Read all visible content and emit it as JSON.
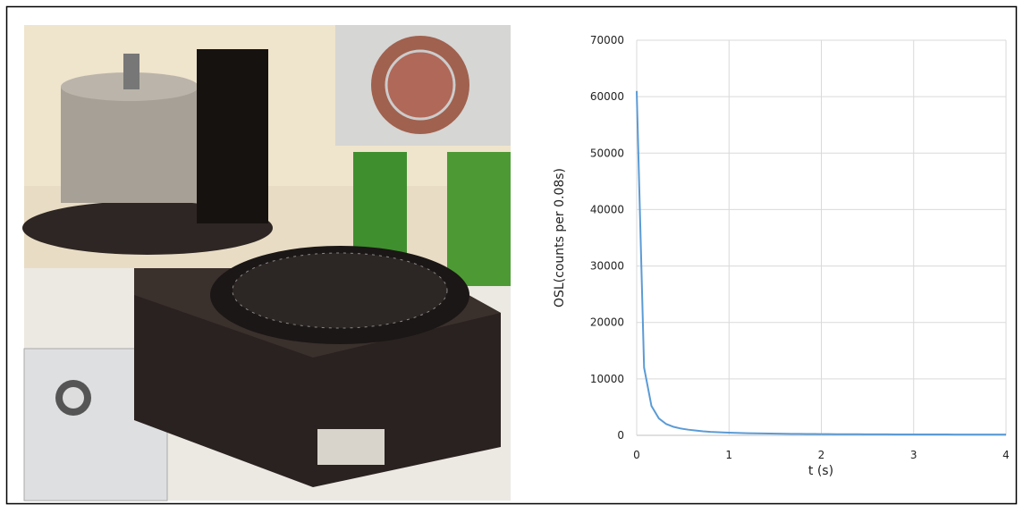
{
  "chart_data": {
    "type": "line",
    "x_label": "t (s)",
    "y_label": "OSL(counts per 0.08s)",
    "x": [
      0,
      0.08,
      0.16,
      0.24,
      0.32,
      0.4,
      0.48,
      0.56,
      0.64,
      0.72,
      0.8,
      0.88,
      0.96,
      1.04,
      1.12,
      1.2,
      1.28,
      1.36,
      1.44,
      1.52,
      1.6,
      1.68,
      1.76,
      1.84,
      1.92,
      2,
      2.08,
      2.16,
      2.24,
      2.32,
      2.4,
      2.48,
      2.56,
      2.64,
      2.72,
      2.8,
      2.88,
      2.96,
      3.04,
      3.12,
      3.2,
      3.28,
      3.36,
      3.44,
      3.52,
      3.6,
      3.68,
      3.76,
      3.84,
      3.92,
      4
    ],
    "series": [
      {
        "color": "#5b9bd5",
        "values": [
          61000,
          12000,
          5200,
          3000,
          2000,
          1500,
          1200,
          1000,
          850,
          720,
          620,
          550,
          500,
          450,
          410,
          380,
          350,
          330,
          310,
          290,
          275,
          260,
          250,
          240,
          230,
          220,
          210,
          205,
          200,
          195,
          190,
          185,
          180,
          175,
          170,
          168,
          165,
          162,
          160,
          158,
          155,
          152,
          150,
          148,
          146,
          144,
          142,
          140,
          138,
          136,
          135
        ]
      }
    ],
    "xlim": [
      0,
      4
    ],
    "xticks": [
      0,
      1,
      2,
      3,
      4
    ],
    "ylim": [
      0,
      70000
    ],
    "yticks": [
      0,
      10000,
      20000,
      30000,
      40000,
      50000,
      60000,
      70000
    ],
    "grid": true
  }
}
